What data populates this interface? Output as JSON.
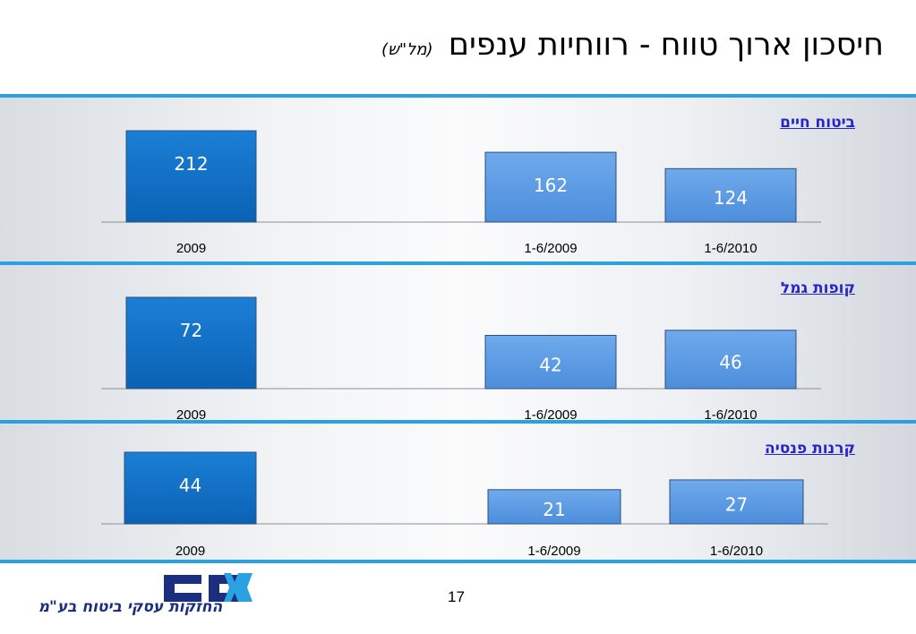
{
  "title": "חיסכון ארוך טווח - רווחיות ענפים",
  "title_unit": "(מל\"ש)",
  "page_number": "17",
  "logo_text": "החזקות עסקי ביטוח בע\"מ",
  "logo_mark": "כלל",
  "colors": {
    "bar_dark": "#0b6fc4",
    "bar_light": "#5b9be3",
    "band": "#2aa1e3",
    "panel_title": "#2626c8"
  },
  "chart_data": [
    {
      "type": "bar",
      "title": "ביטוח חיים",
      "categories": [
        "2009",
        "1-6/2009",
        "1-6/2010"
      ],
      "values": [
        212,
        162,
        124
      ]
    },
    {
      "type": "bar",
      "title": "קופות גמל",
      "categories": [
        "2009",
        "1-6/2009",
        "1-6/2010"
      ],
      "values": [
        72,
        42,
        46
      ]
    },
    {
      "type": "bar",
      "title": "קרנות פנסיה",
      "categories": [
        "2009",
        "1-6/2009",
        "1-6/2010"
      ],
      "values": [
        44,
        21,
        27
      ]
    }
  ]
}
